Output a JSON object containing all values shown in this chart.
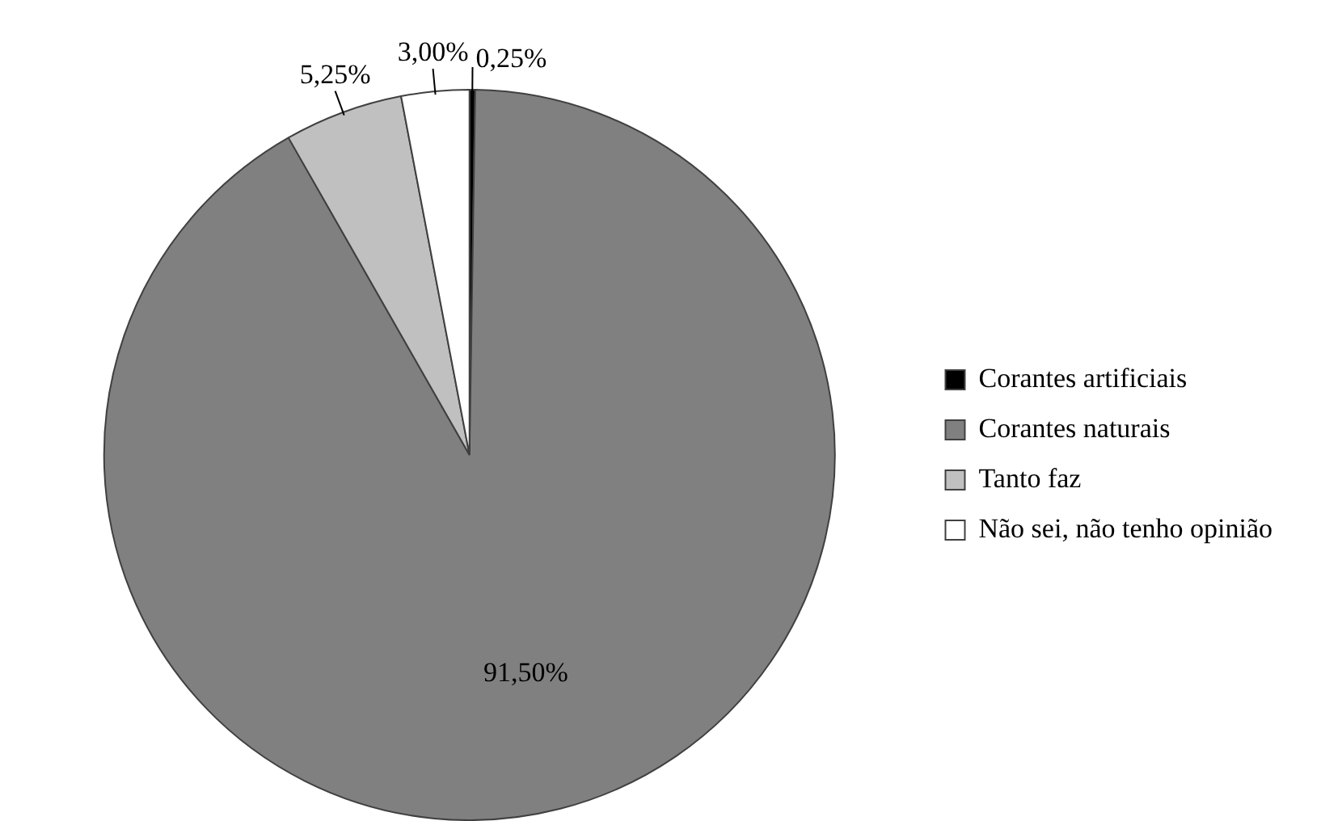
{
  "chart_data": {
    "type": "pie",
    "categories": [
      "Corantes artificiais",
      "Corantes naturais",
      "Tanto faz",
      "Não sei, não tenho opinião"
    ],
    "values": [
      0.25,
      91.5,
      5.25,
      3.0
    ],
    "value_labels": [
      "0,25%",
      "91,50%",
      "5,25%",
      "3,00%"
    ],
    "colors": [
      "#000000",
      "#808080",
      "#c0c0c0",
      "#ffffff"
    ],
    "legend": "right"
  }
}
